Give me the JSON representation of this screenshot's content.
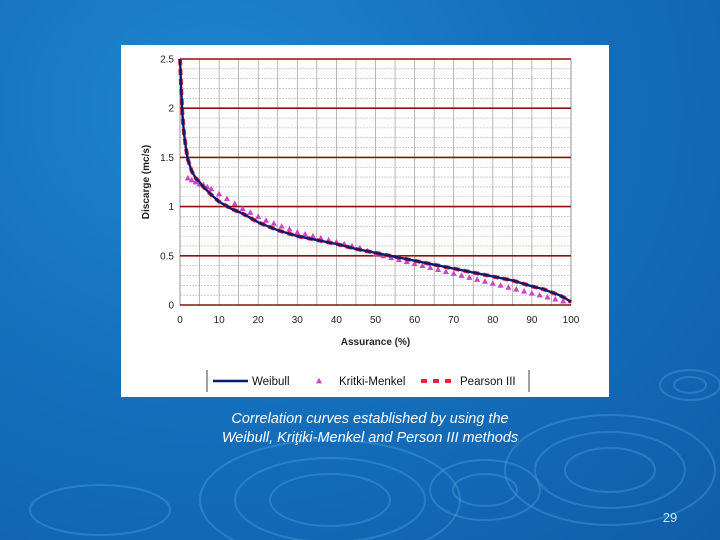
{
  "chart_data": {
    "type": "line",
    "title": "",
    "xlabel": "Assurance (%)",
    "ylabel": "Discarge (mc/s)",
    "xlim": [
      0,
      100
    ],
    "ylim": [
      0,
      2.5
    ],
    "x_ticks": [
      "0",
      "10",
      "20",
      "30",
      "40",
      "50",
      "60",
      "70",
      "80",
      "90",
      "100"
    ],
    "y_ticks": [
      "0",
      "0.5",
      "1",
      "1.5",
      "2",
      "2.5"
    ],
    "grid": true,
    "legend_position": "bottom",
    "series": [
      {
        "name": "Weibull",
        "style": "line",
        "color": "#0a1a6e",
        "x": [
          0,
          0.3,
          0.6,
          1,
          1.5,
          2,
          3,
          4,
          5,
          6,
          8,
          10,
          13,
          16,
          20,
          25,
          30,
          35,
          40,
          45,
          50,
          55,
          60,
          65,
          70,
          75,
          80,
          85,
          90,
          93,
          95,
          97,
          98.5,
          100
        ],
        "y": [
          2.5,
          2.2,
          1.95,
          1.75,
          1.6,
          1.48,
          1.36,
          1.29,
          1.25,
          1.2,
          1.12,
          1.05,
          0.98,
          0.93,
          0.84,
          0.76,
          0.7,
          0.66,
          0.62,
          0.57,
          0.53,
          0.49,
          0.45,
          0.41,
          0.37,
          0.33,
          0.29,
          0.25,
          0.19,
          0.16,
          0.13,
          0.1,
          0.07,
          0.03
        ]
      },
      {
        "name": "Kritki-Menkel",
        "style": "triangle",
        "color": "#cc44cc",
        "x": [
          2,
          3,
          4,
          5,
          6,
          7,
          8,
          10,
          12,
          14,
          16,
          18,
          20,
          22,
          24,
          26,
          28,
          30,
          32,
          34,
          36,
          38,
          40,
          42,
          44,
          46,
          48,
          50,
          52,
          54,
          56,
          58,
          60,
          62,
          64,
          66,
          68,
          70,
          72,
          74,
          76,
          78,
          80,
          82,
          84,
          86,
          88,
          90,
          92,
          94,
          96,
          98
        ],
        "y": [
          1.29,
          1.27,
          1.25,
          1.23,
          1.22,
          1.2,
          1.18,
          1.13,
          1.08,
          1.03,
          0.98,
          0.94,
          0.9,
          0.86,
          0.83,
          0.8,
          0.77,
          0.74,
          0.72,
          0.7,
          0.68,
          0.66,
          0.64,
          0.62,
          0.6,
          0.58,
          0.55,
          0.52,
          0.5,
          0.48,
          0.46,
          0.44,
          0.42,
          0.4,
          0.38,
          0.36,
          0.34,
          0.32,
          0.3,
          0.28,
          0.26,
          0.24,
          0.22,
          0.2,
          0.18,
          0.16,
          0.14,
          0.12,
          0.1,
          0.08,
          0.06,
          0.04
        ]
      },
      {
        "name": "Pearson III",
        "style": "dash",
        "color": "#e8203c",
        "x": [
          0,
          0.3,
          0.6,
          1,
          1.5,
          2,
          3,
          4,
          5,
          6,
          8,
          10,
          13,
          16,
          20,
          25,
          30,
          35,
          40,
          45,
          50,
          55,
          60,
          65,
          70,
          75,
          80,
          85,
          90,
          93,
          95,
          97,
          98.5,
          100
        ],
        "y": [
          2.5,
          2.2,
          1.95,
          1.75,
          1.6,
          1.48,
          1.36,
          1.29,
          1.25,
          1.2,
          1.12,
          1.05,
          0.98,
          0.93,
          0.84,
          0.76,
          0.7,
          0.66,
          0.62,
          0.57,
          0.53,
          0.49,
          0.45,
          0.41,
          0.37,
          0.33,
          0.29,
          0.25,
          0.19,
          0.16,
          0.13,
          0.1,
          0.07,
          0.03
        ]
      }
    ]
  },
  "caption": {
    "line1": "Correlation curves established by using the",
    "line2": "Weibull, Kriţiki-Menkel and Person III methods"
  },
  "page_number": "29"
}
